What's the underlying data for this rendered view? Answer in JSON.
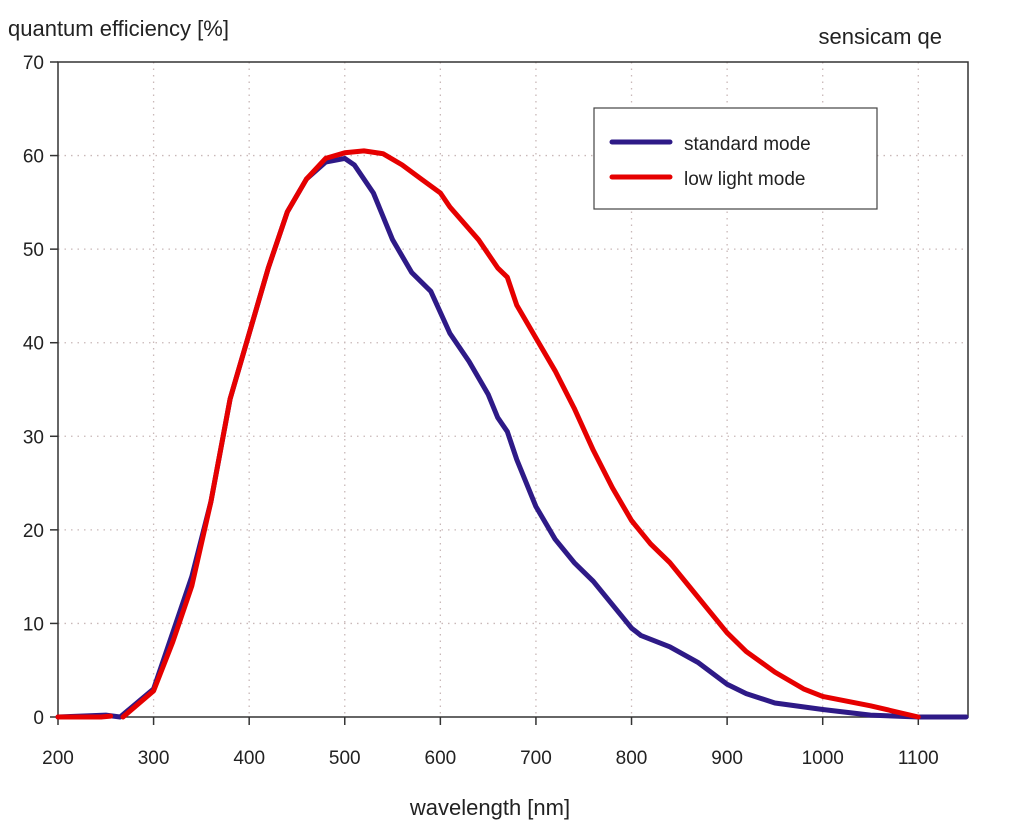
{
  "chart_data": {
    "type": "line",
    "title": "sensicam qe",
    "xlabel": "wavelength [nm]",
    "ylabel": "quantum efficiency [%]",
    "xlim": [
      200,
      1152
    ],
    "ylim": [
      0,
      70
    ],
    "xticks": [
      200,
      300,
      400,
      500,
      600,
      700,
      800,
      900,
      1000,
      1100
    ],
    "yticks": [
      0,
      10,
      20,
      30,
      40,
      50,
      60,
      70
    ],
    "grid": true,
    "legend_position": "top-right",
    "series": [
      {
        "name": "standard mode",
        "color": "#2e1a87",
        "points": [
          [
            200,
            0
          ],
          [
            250,
            0.2
          ],
          [
            265,
            0
          ],
          [
            300,
            3
          ],
          [
            320,
            9
          ],
          [
            340,
            15
          ],
          [
            360,
            23
          ],
          [
            380,
            34
          ],
          [
            400,
            41
          ],
          [
            420,
            48
          ],
          [
            440,
            54
          ],
          [
            460,
            57.5
          ],
          [
            480,
            59.3
          ],
          [
            500,
            59.7
          ],
          [
            510,
            59
          ],
          [
            530,
            56
          ],
          [
            550,
            51
          ],
          [
            570,
            47.5
          ],
          [
            590,
            45.5
          ],
          [
            610,
            41
          ],
          [
            630,
            38
          ],
          [
            650,
            34.5
          ],
          [
            660,
            32
          ],
          [
            670,
            30.5
          ],
          [
            680,
            27.5
          ],
          [
            700,
            22.5
          ],
          [
            720,
            19
          ],
          [
            740,
            16.5
          ],
          [
            760,
            14.5
          ],
          [
            780,
            12
          ],
          [
            800,
            9.5
          ],
          [
            810,
            8.7
          ],
          [
            840,
            7.5
          ],
          [
            870,
            5.8
          ],
          [
            900,
            3.5
          ],
          [
            920,
            2.5
          ],
          [
            950,
            1.5
          ],
          [
            1000,
            0.8
          ],
          [
            1050,
            0.2
          ],
          [
            1100,
            0
          ],
          [
            1150,
            0
          ]
        ]
      },
      {
        "name": "low light mode",
        "color": "#e60000",
        "points": [
          [
            200,
            0
          ],
          [
            245,
            0
          ],
          [
            255,
            0.1
          ],
          null,
          [
            268,
            0
          ],
          [
            300,
            2.8
          ],
          [
            320,
            8
          ],
          [
            340,
            14
          ],
          [
            360,
            23
          ],
          [
            380,
            34
          ],
          [
            400,
            41
          ],
          [
            420,
            48
          ],
          [
            440,
            54
          ],
          [
            460,
            57.5
          ],
          [
            480,
            59.7
          ],
          [
            500,
            60.3
          ],
          [
            520,
            60.5
          ],
          [
            540,
            60.2
          ],
          [
            560,
            59
          ],
          [
            580,
            57.5
          ],
          [
            600,
            56
          ],
          [
            610,
            54.5
          ],
          [
            640,
            51
          ],
          [
            660,
            48
          ],
          [
            670,
            47
          ],
          [
            680,
            44
          ],
          [
            700,
            40.5
          ],
          [
            720,
            37
          ],
          [
            740,
            33
          ],
          [
            760,
            28.5
          ],
          [
            780,
            24.5
          ],
          [
            800,
            21
          ],
          [
            820,
            18.5
          ],
          [
            840,
            16.5
          ],
          [
            860,
            14
          ],
          [
            880,
            11.5
          ],
          [
            900,
            9
          ],
          [
            920,
            7
          ],
          [
            950,
            4.8
          ],
          [
            980,
            3
          ],
          [
            1000,
            2.2
          ],
          [
            1050,
            1.2
          ],
          [
            1100,
            0
          ]
        ]
      }
    ]
  }
}
